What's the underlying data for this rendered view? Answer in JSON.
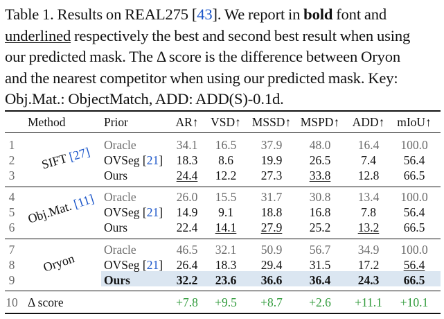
{
  "caption": {
    "line1_a": "Table 1. Results on REAL275 [",
    "line1_cite": "43",
    "line1_b": "]. We report in ",
    "line1_bold": "bold",
    "line1_c": " font and",
    "line2_ul": "underlined",
    "line2_b": " respectively the best and second best result when using",
    "line3": "our predicted mask. The Δ score is the difference between Oryon",
    "line4": "and the nearest competitor when using our predicted mask. Key:",
    "line5": "Obj.Mat.: ObjectMatch, ADD: ADD(S)-0.1d."
  },
  "table": {
    "headers": {
      "method": "Method",
      "prior": "Prior",
      "ar": "AR↑",
      "vsd": "VSD↑",
      "mssd": "MSSD↑",
      "mspd": "MSPD↑",
      "add": "ADD↑",
      "miou": "mIoU↑"
    },
    "groups": [
      {
        "label": "SIFT",
        "cite": "27",
        "rows": [
          {
            "n": "1",
            "prior": "Oracle",
            "prior_cite": "",
            "vals": [
              "34.1",
              "16.5",
              "37.9",
              "48.0",
              "16.4",
              "100.0"
            ]
          },
          {
            "n": "2",
            "prior": "OVSeg",
            "prior_cite": "21",
            "vals": [
              "18.3",
              "8.6",
              "19.9",
              "26.5",
              "7.4",
              "56.4"
            ]
          },
          {
            "n": "3",
            "prior": "Ours",
            "prior_cite": "",
            "vals": [
              "24.4",
              "12.2",
              "27.3",
              "33.8",
              "12.8",
              "66.5"
            ]
          }
        ]
      },
      {
        "label": "Obj.Mat.",
        "cite": "11",
        "rows": [
          {
            "n": "4",
            "prior": "Oracle",
            "prior_cite": "",
            "vals": [
              "26.0",
              "15.5",
              "31.7",
              "30.8",
              "13.4",
              "100.0"
            ]
          },
          {
            "n": "5",
            "prior": "OVSeg",
            "prior_cite": "21",
            "vals": [
              "14.9",
              "9.1",
              "18.8",
              "16.8",
              "7.8",
              "56.4"
            ]
          },
          {
            "n": "6",
            "prior": "Ours",
            "prior_cite": "",
            "vals": [
              "22.4",
              "14.1",
              "27.9",
              "25.2",
              "13.2",
              "66.5"
            ]
          }
        ]
      },
      {
        "label": "Oryon",
        "cite": "",
        "rows": [
          {
            "n": "7",
            "prior": "Oracle",
            "prior_cite": "",
            "vals": [
              "46.5",
              "32.1",
              "50.9",
              "56.7",
              "34.9",
              "100.0"
            ]
          },
          {
            "n": "8",
            "prior": "OVSeg",
            "prior_cite": "21",
            "vals": [
              "26.4",
              "18.3",
              "29.4",
              "31.5",
              "17.2",
              "56.4"
            ]
          },
          {
            "n": "9",
            "prior": "Ours",
            "prior_cite": "",
            "vals": [
              "32.2",
              "23.6",
              "36.6",
              "36.4",
              "24.3",
              "66.5"
            ]
          }
        ]
      }
    ],
    "delta": {
      "n": "10",
      "label": "Δ score",
      "vals": [
        "+7.8",
        "+9.5",
        "+8.7",
        "+2.6",
        "+11.1",
        "+10.1"
      ]
    },
    "colors": {
      "gray": "#6b6b6b",
      "cite": "#1a55c9",
      "green": "#2f9a3a",
      "highlight": "#dbe6f1"
    }
  }
}
